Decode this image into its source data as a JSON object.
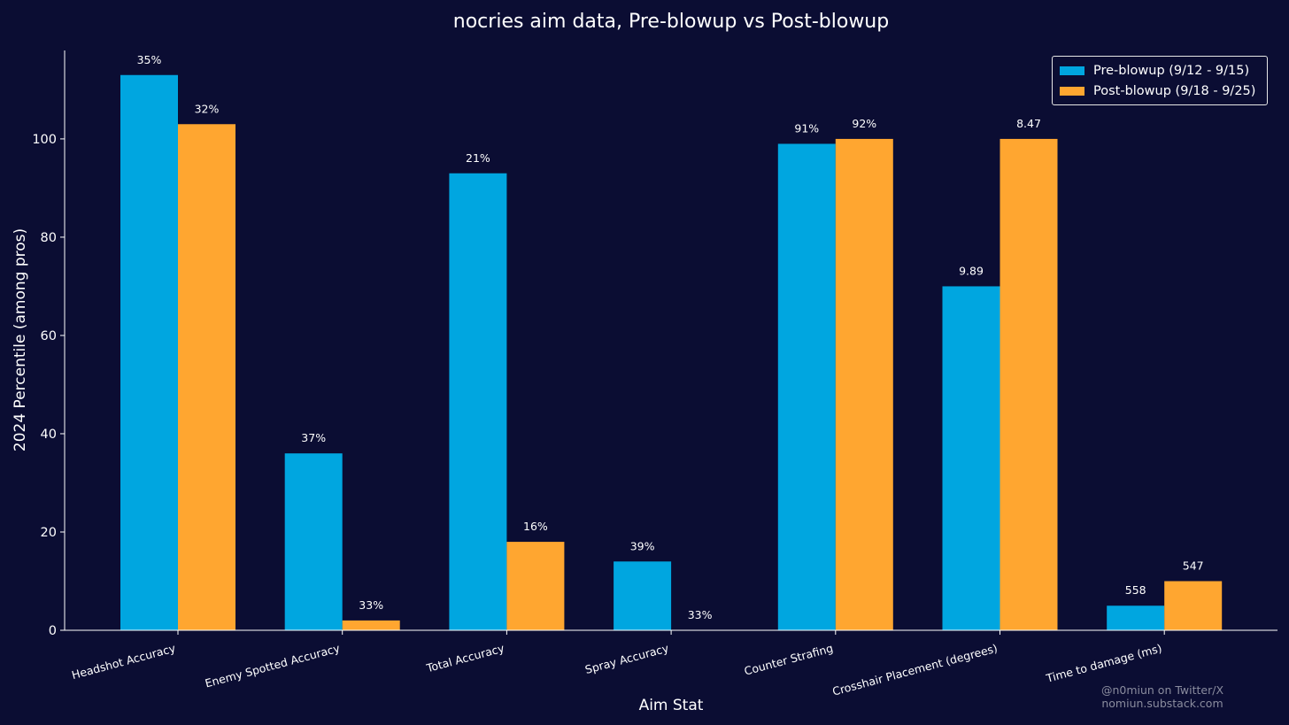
{
  "chart_data": {
    "type": "bar",
    "title": "nocries aim data, Pre-blowup vs Post-blowup",
    "xlabel": "Aim Stat",
    "ylabel": "2024 Percentile (among pros)",
    "ylim": [
      0,
      118
    ],
    "yticks": [
      0,
      20,
      40,
      60,
      80,
      100
    ],
    "grid": false,
    "legend_position": "top-right",
    "categories": [
      "Headshot Accuracy",
      "Enemy Spotted Accuracy",
      "Total Accuracy",
      "Spray Accuracy",
      "Counter Strafing",
      "Crosshair Placement (degrees)",
      "Time to damage (ms)"
    ],
    "series": [
      {
        "name": "Pre-blowup (9/12 - 9/15)",
        "color": "#00a6e0",
        "values": [
          113,
          36,
          93,
          14,
          99,
          70,
          5
        ],
        "labels": [
          "35%",
          "37%",
          "21%",
          "39%",
          "91%",
          "9.89",
          "558"
        ]
      },
      {
        "name": "Post-blowup (9/18 - 9/25)",
        "color": "#ffa630",
        "values": [
          103,
          2,
          18,
          0,
          100,
          100,
          10
        ],
        "labels": [
          "32%",
          "33%",
          "16%",
          "33%",
          "92%",
          "8.47",
          "547"
        ]
      }
    ]
  },
  "watermark": {
    "line1": "@n0miun on Twitter/X",
    "line2": "nomiun.substack.com"
  }
}
